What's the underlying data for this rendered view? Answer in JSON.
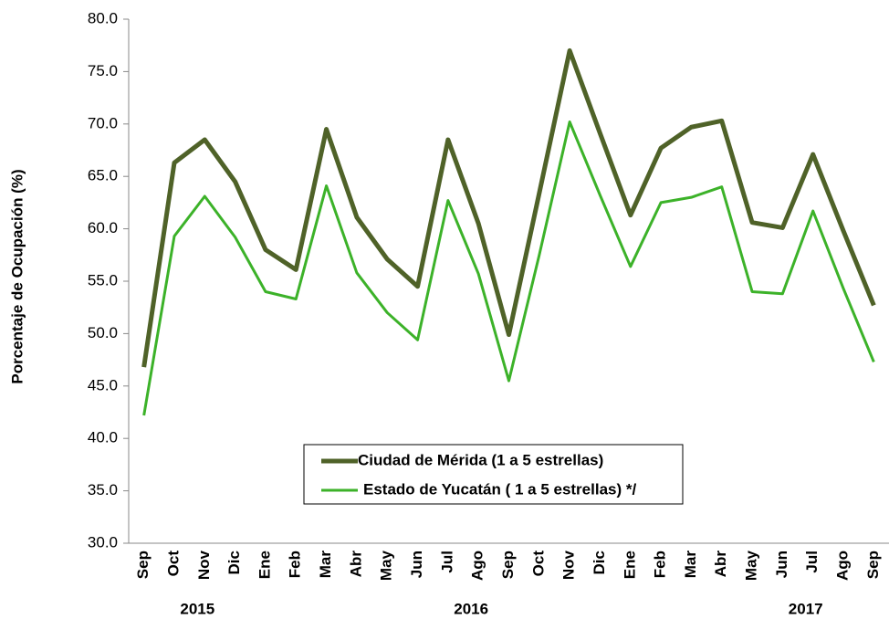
{
  "chart_data": {
    "type": "line",
    "y_label": "Porcentaje de Ocupación (%)",
    "categories": [
      "Sep",
      "Oct",
      "Nov",
      "Dic",
      "Ene",
      "Feb",
      "Mar",
      "Abr",
      "May",
      "Jun",
      "Jul",
      "Ago",
      "Sep",
      "Oct",
      "Nov",
      "Dic",
      "Ene",
      "Feb",
      "Mar",
      "Abr",
      "May",
      "Jun",
      "Jul",
      "Ago",
      "Sep"
    ],
    "year_labels": [
      "2015",
      "2016",
      "2017"
    ],
    "series": [
      {
        "name": "Ciudad de Mérida (1 a 5 estrellas)",
        "color": "#4f6228",
        "values": [
          46.8,
          66.3,
          68.5,
          64.5,
          58.0,
          56.1,
          69.5,
          61.1,
          57.1,
          54.5,
          68.5,
          60.5,
          49.9,
          63.4,
          77.0,
          69.1,
          61.3,
          67.7,
          69.7,
          70.3,
          60.6,
          60.1,
          67.1,
          59.8,
          52.7
        ]
      },
      {
        "name": "Estado de Yucatán ( 1 a 5 estrellas) */",
        "color": "#3cb229",
        "values": [
          42.2,
          59.3,
          63.1,
          59.2,
          54.0,
          53.3,
          64.1,
          55.8,
          52.0,
          49.4,
          62.7,
          55.7,
          45.5,
          57.5,
          70.2,
          63.2,
          56.4,
          62.5,
          63.0,
          64.0,
          54.0,
          53.8,
          61.7,
          54.3,
          47.3
        ]
      }
    ],
    "ylim": [
      30,
      80
    ],
    "yticks": [
      {
        "value": 30,
        "label": "30.0"
      },
      {
        "value": 35,
        "label": "35.0"
      },
      {
        "value": 40,
        "label": "40.0"
      },
      {
        "value": 45,
        "label": "45.0"
      },
      {
        "value": 50,
        "label": "50.0"
      },
      {
        "value": 55,
        "label": "55.0"
      },
      {
        "value": 60,
        "label": "60.0"
      },
      {
        "value": 65,
        "label": "65.0"
      },
      {
        "value": 70,
        "label": "70.0"
      },
      {
        "value": 75,
        "label": "75.0"
      },
      {
        "value": 80,
        "label": "80.0"
      }
    ],
    "grid": false
  }
}
